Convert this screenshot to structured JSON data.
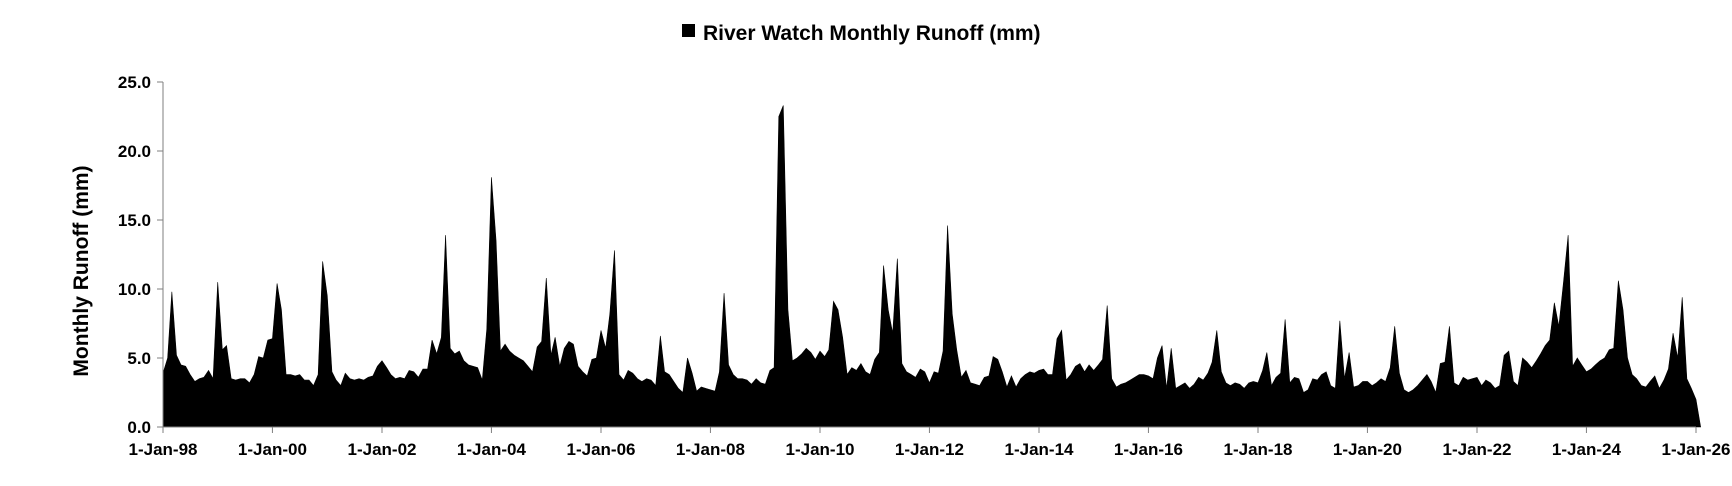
{
  "chart_data": {
    "type": "area",
    "title": "",
    "xlabel": "",
    "ylabel": "Monthly Runoff (mm)",
    "ylim": [
      0,
      25
    ],
    "xlim": [
      "1998-01-01",
      "2026-01-01"
    ],
    "y_ticks": [
      "0.0",
      "5.0",
      "10.0",
      "15.0",
      "20.0",
      "25.0"
    ],
    "x_ticks": [
      "1-Jan-98",
      "1-Jan-00",
      "1-Jan-02",
      "1-Jan-04",
      "1-Jan-06",
      "1-Jan-08",
      "1-Jan-10",
      "1-Jan-12",
      "1-Jan-14",
      "1-Jan-16",
      "1-Jan-18",
      "1-Jan-20",
      "1-Jan-22",
      "1-Jan-24",
      "1-Jan-26"
    ],
    "grid": false,
    "legend": {
      "position": "top",
      "entries": [
        "River Watch Monthly Runoff (mm)"
      ]
    },
    "colors": {
      "series": "#000000",
      "axis": "#7f7f7f"
    },
    "series": [
      {
        "name": "River Watch Monthly Runoff (mm)",
        "start": "1998-01",
        "interval": "month",
        "values": [
          3.9,
          5.0,
          9.8,
          5.2,
          4.5,
          4.4,
          3.8,
          3.3,
          3.5,
          3.6,
          4.1,
          3.5,
          10.5,
          5.6,
          5.9,
          3.5,
          3.4,
          3.5,
          3.5,
          3.2,
          3.8,
          5.1,
          5.0,
          6.3,
          6.4,
          10.4,
          8.5,
          3.8,
          3.8,
          3.7,
          3.8,
          3.4,
          3.4,
          3.0,
          3.8,
          12.0,
          9.5,
          4.0,
          3.4,
          3.0,
          3.9,
          3.5,
          3.4,
          3.5,
          3.4,
          3.6,
          3.7,
          4.4,
          4.8,
          4.3,
          3.8,
          3.5,
          3.6,
          3.5,
          4.1,
          4.0,
          3.6,
          4.2,
          4.2,
          6.3,
          5.3,
          6.5,
          13.9,
          5.7,
          5.3,
          5.5,
          4.8,
          4.5,
          4.4,
          4.3,
          3.4,
          7.1,
          18.1,
          13.5,
          5.5,
          6.0,
          5.5,
          5.2,
          5.0,
          4.8,
          4.4,
          4.0,
          5.8,
          6.2,
          10.8,
          5.2,
          6.5,
          4.4,
          5.7,
          6.2,
          6.0,
          4.4,
          4.0,
          3.7,
          4.9,
          5.0,
          7.0,
          5.7,
          8.2,
          12.8,
          3.8,
          3.4,
          4.1,
          3.9,
          3.5,
          3.3,
          3.5,
          3.4,
          3.0,
          6.6,
          4.0,
          3.8,
          3.3,
          2.8,
          2.5,
          5.0,
          3.9,
          2.6,
          2.9,
          2.8,
          2.7,
          2.6,
          4.0,
          9.7,
          4.5,
          3.8,
          3.5,
          3.5,
          3.4,
          3.1,
          3.5,
          3.2,
          3.1,
          4.1,
          4.3,
          22.5,
          23.3,
          8.5,
          4.8,
          5.0,
          5.3,
          5.7,
          5.4,
          4.9,
          5.5,
          5.1,
          5.6,
          9.1,
          8.5,
          6.5,
          3.8,
          4.3,
          4.1,
          4.6,
          4.0,
          3.8,
          4.9,
          5.4,
          11.7,
          8.5,
          6.8,
          12.2,
          4.6,
          4.0,
          3.8,
          3.6,
          4.2,
          4.0,
          3.2,
          4.0,
          3.9,
          5.5,
          14.6,
          8.2,
          5.6,
          3.6,
          4.1,
          3.2,
          3.1,
          3.0,
          3.6,
          3.7,
          5.1,
          4.9,
          4.0,
          2.9,
          3.7,
          2.9,
          3.5,
          3.8,
          4.0,
          3.9,
          4.1,
          4.2,
          3.8,
          3.8,
          6.4,
          7.0,
          3.4,
          3.8,
          4.4,
          4.6,
          4.0,
          4.5,
          4.1,
          4.5,
          4.9,
          8.8,
          3.5,
          2.9,
          3.1,
          3.2,
          3.4,
          3.6,
          3.8,
          3.8,
          3.7,
          3.5,
          5.0,
          5.9,
          2.8,
          5.7,
          2.8,
          3.0,
          3.2,
          2.8,
          3.1,
          3.6,
          3.4,
          3.9,
          4.7,
          7.0,
          4.0,
          3.2,
          3.0,
          3.2,
          3.1,
          2.8,
          3.2,
          3.3,
          3.2,
          4.1,
          5.4,
          3.0,
          3.6,
          3.9,
          7.8,
          3.2,
          3.6,
          3.5,
          2.5,
          2.7,
          3.5,
          3.4,
          3.8,
          4.0,
          3.0,
          2.8,
          7.7,
          3.5,
          5.4,
          2.9,
          3.0,
          3.3,
          3.3,
          3.0,
          3.2,
          3.5,
          3.3,
          4.3,
          7.3,
          3.9,
          2.7,
          2.5,
          2.7,
          3.0,
          3.4,
          3.8,
          3.3,
          2.5,
          4.6,
          4.7,
          7.3,
          3.2,
          3.0,
          3.6,
          3.4,
          3.5,
          3.6,
          3.0,
          3.4,
          3.2,
          2.8,
          3.0,
          5.2,
          5.5,
          3.3,
          3.0,
          5.0,
          4.7,
          4.3,
          4.8,
          5.3,
          5.9,
          6.3,
          9.0,
          7.3,
          10.5,
          13.9,
          4.4,
          5.0,
          4.5,
          4.0,
          4.2,
          4.5,
          4.8,
          5.0,
          5.6,
          5.7,
          10.6,
          8.5,
          5.0,
          3.8,
          3.5,
          3.0,
          2.9,
          3.3,
          3.7,
          2.8,
          3.4,
          4.2,
          6.8,
          5.0,
          9.4,
          3.5,
          2.8,
          2.0,
          0.0
        ]
      }
    ]
  }
}
